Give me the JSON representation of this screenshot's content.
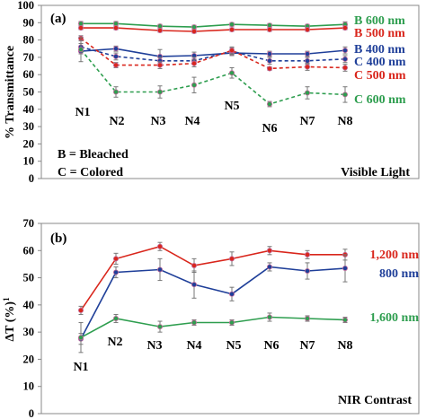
{
  "chart_data": [
    {
      "panel": "(a)",
      "type": "line",
      "ylabel": "% Transmittance",
      "ylim": [
        0,
        100
      ],
      "yticks": [
        0,
        10,
        20,
        30,
        40,
        50,
        60,
        70,
        80,
        90,
        100
      ],
      "categories": [
        "N1",
        "N2",
        "N3",
        "N4",
        "N5",
        "N6",
        "N7",
        "N8"
      ],
      "annotations": [
        "B = Bleached",
        "C = Colored",
        "Visible Light"
      ],
      "grid": false,
      "series": [
        {
          "name": "B 600 nm",
          "color": "#2e9e4f",
          "dashed": false,
          "values": [
            89.5,
            89.5,
            88,
            87.5,
            89,
            88.5,
            88,
            89
          ],
          "errors": [
            1.2,
            1.2,
            1,
            1,
            1,
            1,
            1,
            1.5
          ]
        },
        {
          "name": "B 500 nm",
          "color": "#d9261c",
          "dashed": false,
          "values": [
            87,
            87,
            85.5,
            85,
            86,
            86,
            86,
            87
          ],
          "errors": [
            1,
            1,
            1,
            1,
            1,
            1,
            1,
            1
          ]
        },
        {
          "name": "B 400 nm",
          "color": "#1f3f99",
          "dashed": false,
          "values": [
            73.5,
            75,
            70.5,
            71,
            72.5,
            72,
            72,
            74
          ],
          "errors": [
            1.5,
            1.5,
            4,
            2,
            1.5,
            1.5,
            1.5,
            2
          ]
        },
        {
          "name": "C 400 nm",
          "color": "#1f3f99",
          "dashed": true,
          "values": [
            76,
            70.5,
            68,
            68,
            73.5,
            68,
            68,
            69
          ],
          "errors": [
            2,
            2,
            2,
            2,
            2,
            2,
            2,
            2
          ]
        },
        {
          "name": "C 500 nm",
          "color": "#d9261c",
          "dashed": true,
          "values": [
            81,
            65.5,
            65.5,
            66.5,
            74,
            63.5,
            64.5,
            64
          ],
          "errors": [
            1.5,
            1.5,
            2,
            2,
            2,
            1,
            2,
            2
          ]
        },
        {
          "name": "C 600 nm",
          "color": "#2e9e4f",
          "dashed": true,
          "values": [
            74.5,
            50,
            50,
            54,
            61,
            43,
            49.5,
            48.5
          ],
          "errors": [
            7,
            3,
            3.5,
            4.5,
            3,
            1.5,
            3.5,
            4.5
          ]
        }
      ]
    },
    {
      "panel": "(b)",
      "type": "line",
      "ylabel": "ΔT (%)",
      "ylabel_superscript": "1",
      "ylim": [
        0,
        70
      ],
      "yticks": [
        0,
        10,
        20,
        30,
        40,
        50,
        60,
        70
      ],
      "categories": [
        "N1",
        "N2",
        "N3",
        "N4",
        "N5",
        "N6",
        "N7",
        "N8"
      ],
      "annotations": [
        "NIR Contrast"
      ],
      "grid": false,
      "series": [
        {
          "name": "1,200 nm",
          "color": "#d9261c",
          "values": [
            38,
            57,
            61.5,
            54.5,
            57,
            60,
            58.5,
            58.5
          ],
          "errors": [
            1.5,
            2,
            1.5,
            2.5,
            2.5,
            1.5,
            1.5,
            2
          ]
        },
        {
          "name": "800 nm",
          "color": "#1f3f99",
          "values": [
            27.5,
            52,
            53,
            47.5,
            44,
            54,
            52.5,
            53.5
          ],
          "errors": [
            2,
            2,
            4,
            5,
            2.5,
            1.5,
            3,
            5
          ]
        },
        {
          "name": "1,600 nm",
          "color": "#2e9e4f",
          "values": [
            28,
            35,
            32,
            33.5,
            33.5,
            35.5,
            35,
            34.5
          ],
          "errors": [
            5.5,
            1.5,
            2,
            1,
            1,
            1.5,
            1,
            1
          ]
        }
      ]
    }
  ]
}
